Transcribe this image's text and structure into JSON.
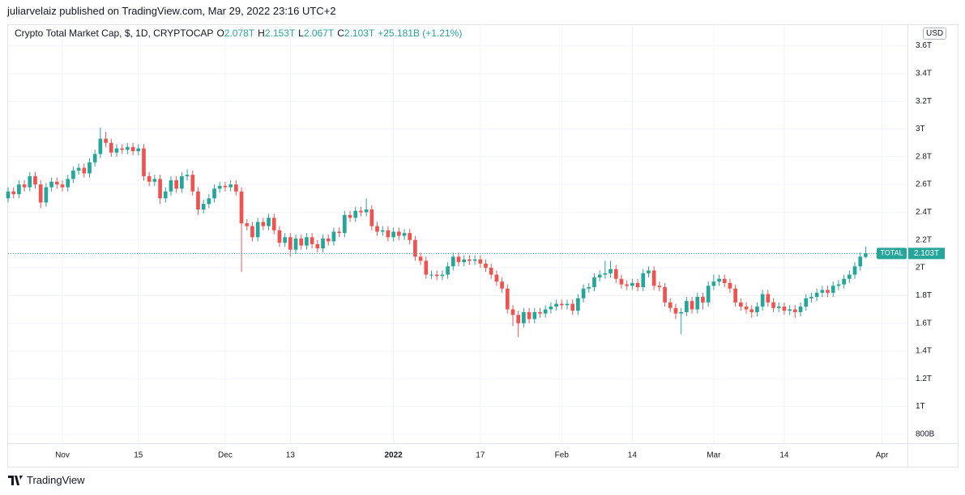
{
  "header": {
    "published": "juliarvelaiz published on TradingView.com, Mar 29, 2022 23:16 UTC+2",
    "symbol": "Crypto Total Market Cap, $, 1D, CRYPTOCAP",
    "ohlc": [
      {
        "key": "O",
        "value": "2.078T"
      },
      {
        "key": "H",
        "value": "2.153T"
      },
      {
        "key": "L",
        "value": "2.067T"
      },
      {
        "key": "C",
        "value": "2.103T"
      }
    ],
    "change": "+25.181B (+1.21%)",
    "currency": "USD"
  },
  "footer": {
    "brand": "TradingView"
  },
  "chart_data": {
    "type": "candlestick",
    "up_color": "#26a69a",
    "down_color": "#ef5350",
    "grid": true,
    "xlim": [
      0,
      165.7
    ],
    "xticks": [
      {
        "value": 10,
        "label": "Nov"
      },
      {
        "value": 24,
        "label": "15"
      },
      {
        "value": 40,
        "label": "Dec"
      },
      {
        "value": 52,
        "label": "13"
      },
      {
        "value": 71,
        "label": "2022"
      },
      {
        "value": 87,
        "label": "17"
      },
      {
        "value": 102,
        "label": "Feb"
      },
      {
        "value": 115,
        "label": "14"
      },
      {
        "value": 130,
        "label": "Mar"
      },
      {
        "value": 143,
        "label": "14"
      },
      {
        "value": 161,
        "label": "Apr"
      }
    ],
    "ylim": [
      0.735,
      3.755
    ],
    "yticks": [
      {
        "value": 0.8,
        "label": "800B"
      },
      {
        "value": 1,
        "label": "1T"
      },
      {
        "value": 1.2,
        "label": "1.2T"
      },
      {
        "value": 1.4,
        "label": "1.4T"
      },
      {
        "value": 1.6,
        "label": "1.6T"
      },
      {
        "value": 1.8,
        "label": "1.8T"
      },
      {
        "value": 2,
        "label": "2T"
      },
      {
        "value": 2.2,
        "label": "2.2T"
      },
      {
        "value": 2.4,
        "label": "2.4T"
      },
      {
        "value": 2.6,
        "label": "2.6T"
      },
      {
        "value": 2.8,
        "label": "2.8T"
      },
      {
        "value": 3,
        "label": "3T"
      },
      {
        "value": 3.2,
        "label": "3.2T"
      },
      {
        "value": 3.4,
        "label": "3.4T"
      },
      {
        "value": 3.6,
        "label": "3.6T"
      }
    ],
    "last_price": {
      "name": "TOTAL",
      "value": 2.103,
      "label": "2.103T",
      "color": "#26a69a"
    },
    "series": [
      {
        "ohlc": [
          [
            2.5,
            2.58,
            2.47,
            2.55
          ],
          [
            2.55,
            2.58,
            2.5,
            2.53
          ],
          [
            2.53,
            2.63,
            2.5,
            2.6
          ],
          [
            2.6,
            2.63,
            2.55,
            2.58
          ],
          [
            2.58,
            2.69,
            2.55,
            2.66
          ],
          [
            2.66,
            2.69,
            2.57,
            2.6
          ],
          [
            2.6,
            2.63,
            2.43,
            2.47
          ],
          [
            2.47,
            2.61,
            2.44,
            2.58
          ],
          [
            2.58,
            2.65,
            2.55,
            2.62
          ],
          [
            2.62,
            2.65,
            2.57,
            2.6
          ],
          [
            2.6,
            2.63,
            2.55,
            2.58
          ],
          [
            2.58,
            2.67,
            2.55,
            2.64
          ],
          [
            2.64,
            2.73,
            2.61,
            2.7
          ],
          [
            2.7,
            2.75,
            2.67,
            2.72
          ],
          [
            2.72,
            2.75,
            2.65,
            2.68
          ],
          [
            2.68,
            2.79,
            2.65,
            2.76
          ],
          [
            2.76,
            2.85,
            2.73,
            2.82
          ],
          [
            2.82,
            3.01,
            2.79,
            2.93
          ],
          [
            2.93,
            2.98,
            2.87,
            2.9
          ],
          [
            2.9,
            2.93,
            2.8,
            2.83
          ],
          [
            2.83,
            2.89,
            2.8,
            2.86
          ],
          [
            2.86,
            2.89,
            2.82,
            2.85
          ],
          [
            2.85,
            2.9,
            2.82,
            2.87
          ],
          [
            2.87,
            2.9,
            2.81,
            2.84
          ],
          [
            2.84,
            2.89,
            2.81,
            2.86
          ],
          [
            2.86,
            2.89,
            2.63,
            2.66
          ],
          [
            2.66,
            2.69,
            2.59,
            2.62
          ],
          [
            2.62,
            2.67,
            2.59,
            2.64
          ],
          [
            2.64,
            2.67,
            2.46,
            2.5
          ],
          [
            2.5,
            2.58,
            2.47,
            2.55
          ],
          [
            2.55,
            2.66,
            2.52,
            2.63
          ],
          [
            2.63,
            2.66,
            2.54,
            2.57
          ],
          [
            2.57,
            2.69,
            2.54,
            2.66
          ],
          [
            2.66,
            2.71,
            2.63,
            2.67
          ],
          [
            2.67,
            2.7,
            2.52,
            2.55
          ],
          [
            2.55,
            2.58,
            2.38,
            2.42
          ],
          [
            2.42,
            2.49,
            2.39,
            2.46
          ],
          [
            2.46,
            2.53,
            2.43,
            2.5
          ],
          [
            2.5,
            2.6,
            2.47,
            2.57
          ],
          [
            2.57,
            2.62,
            2.54,
            2.59
          ],
          [
            2.59,
            2.62,
            2.55,
            2.58
          ],
          [
            2.58,
            2.63,
            2.55,
            2.6
          ],
          [
            2.6,
            2.63,
            2.52,
            2.55
          ],
          [
            2.55,
            2.58,
            1.97,
            2.32
          ],
          [
            2.32,
            2.35,
            2.27,
            2.3
          ],
          [
            2.3,
            2.33,
            2.19,
            2.22
          ],
          [
            2.22,
            2.36,
            2.19,
            2.33
          ],
          [
            2.33,
            2.36,
            2.27,
            2.3
          ],
          [
            2.3,
            2.39,
            2.27,
            2.36
          ],
          [
            2.36,
            2.39,
            2.24,
            2.27
          ],
          [
            2.27,
            2.3,
            2.15,
            2.18
          ],
          [
            2.18,
            2.25,
            2.15,
            2.22
          ],
          [
            2.22,
            2.25,
            2.08,
            2.13
          ],
          [
            2.13,
            2.24,
            2.1,
            2.21
          ],
          [
            2.21,
            2.24,
            2.13,
            2.16
          ],
          [
            2.16,
            2.25,
            2.13,
            2.22
          ],
          [
            2.22,
            2.25,
            2.14,
            2.17
          ],
          [
            2.17,
            2.2,
            2.11,
            2.14
          ],
          [
            2.14,
            2.24,
            2.11,
            2.21
          ],
          [
            2.21,
            2.24,
            2.16,
            2.19
          ],
          [
            2.19,
            2.29,
            2.16,
            2.26
          ],
          [
            2.26,
            2.29,
            2.22,
            2.25
          ],
          [
            2.25,
            2.41,
            2.22,
            2.38
          ],
          [
            2.38,
            2.41,
            2.33,
            2.36
          ],
          [
            2.36,
            2.44,
            2.33,
            2.41
          ],
          [
            2.41,
            2.44,
            2.37,
            2.4
          ],
          [
            2.4,
            2.5,
            2.37,
            2.42
          ],
          [
            2.42,
            2.45,
            2.27,
            2.3
          ],
          [
            2.3,
            2.33,
            2.23,
            2.26
          ],
          [
            2.26,
            2.3,
            2.23,
            2.27
          ],
          [
            2.27,
            2.3,
            2.19,
            2.22
          ],
          [
            2.22,
            2.29,
            2.19,
            2.26
          ],
          [
            2.26,
            2.29,
            2.2,
            2.23
          ],
          [
            2.23,
            2.28,
            2.2,
            2.25
          ],
          [
            2.25,
            2.28,
            2.17,
            2.2
          ],
          [
            2.2,
            2.23,
            2.05,
            2.08
          ],
          [
            2.08,
            2.11,
            2.02,
            2.05
          ],
          [
            2.05,
            2.08,
            1.92,
            1.95
          ],
          [
            1.95,
            1.98,
            1.92,
            1.95
          ],
          [
            1.95,
            1.98,
            1.91,
            1.94
          ],
          [
            1.94,
            1.98,
            1.91,
            1.95
          ],
          [
            1.95,
            2.04,
            1.92,
            2.01
          ],
          [
            2.01,
            2.11,
            1.98,
            2.08
          ],
          [
            2.08,
            2.11,
            2.01,
            2.04
          ],
          [
            2.04,
            2.09,
            2.01,
            2.06
          ],
          [
            2.06,
            2.09,
            2.02,
            2.05
          ],
          [
            2.05,
            2.09,
            2.02,
            2.06
          ],
          [
            2.06,
            2.09,
            2.0,
            2.03
          ],
          [
            2.03,
            2.06,
            1.97,
            2.0
          ],
          [
            2.0,
            2.03,
            1.92,
            1.95
          ],
          [
            1.95,
            1.98,
            1.87,
            1.9
          ],
          [
            1.9,
            1.93,
            1.82,
            1.85
          ],
          [
            1.85,
            1.88,
            1.67,
            1.7
          ],
          [
            1.7,
            1.73,
            1.58,
            1.66
          ],
          [
            1.66,
            1.69,
            1.5,
            1.6
          ],
          [
            1.6,
            1.71,
            1.57,
            1.68
          ],
          [
            1.68,
            1.71,
            1.6,
            1.63
          ],
          [
            1.63,
            1.71,
            1.6,
            1.68
          ],
          [
            1.68,
            1.71,
            1.64,
            1.67
          ],
          [
            1.67,
            1.73,
            1.64,
            1.7
          ],
          [
            1.7,
            1.75,
            1.67,
            1.72
          ],
          [
            1.72,
            1.77,
            1.69,
            1.74
          ],
          [
            1.74,
            1.77,
            1.7,
            1.73
          ],
          [
            1.73,
            1.77,
            1.7,
            1.74
          ],
          [
            1.74,
            1.77,
            1.66,
            1.69
          ],
          [
            1.69,
            1.81,
            1.66,
            1.78
          ],
          [
            1.78,
            1.88,
            1.75,
            1.85
          ],
          [
            1.85,
            1.89,
            1.82,
            1.86
          ],
          [
            1.86,
            1.96,
            1.83,
            1.93
          ],
          [
            1.93,
            1.98,
            1.9,
            1.95
          ],
          [
            1.95,
            2.05,
            1.92,
            1.96
          ],
          [
            1.96,
            2.05,
            1.93,
            1.99
          ],
          [
            1.99,
            2.02,
            1.89,
            1.92
          ],
          [
            1.92,
            1.95,
            1.85,
            1.88
          ],
          [
            1.88,
            1.91,
            1.84,
            1.87
          ],
          [
            1.87,
            1.92,
            1.84,
            1.89
          ],
          [
            1.89,
            1.92,
            1.83,
            1.86
          ],
          [
            1.86,
            1.99,
            1.83,
            1.96
          ],
          [
            1.96,
            2.01,
            1.93,
            1.98
          ],
          [
            1.98,
            2.01,
            1.84,
            1.87
          ],
          [
            1.87,
            1.9,
            1.83,
            1.86
          ],
          [
            1.86,
            1.89,
            1.72,
            1.75
          ],
          [
            1.75,
            1.78,
            1.68,
            1.71
          ],
          [
            1.71,
            1.74,
            1.63,
            1.67
          ],
          [
            1.67,
            1.71,
            1.52,
            1.68
          ],
          [
            1.68,
            1.79,
            1.65,
            1.76
          ],
          [
            1.76,
            1.79,
            1.67,
            1.7
          ],
          [
            1.7,
            1.82,
            1.67,
            1.79
          ],
          [
            1.79,
            1.82,
            1.7,
            1.75
          ],
          [
            1.75,
            1.9,
            1.72,
            1.87
          ],
          [
            1.87,
            1.95,
            1.84,
            1.9
          ],
          [
            1.9,
            1.95,
            1.87,
            1.92
          ],
          [
            1.92,
            1.95,
            1.86,
            1.89
          ],
          [
            1.89,
            1.92,
            1.82,
            1.85
          ],
          [
            1.85,
            1.88,
            1.72,
            1.75
          ],
          [
            1.75,
            1.78,
            1.69,
            1.72
          ],
          [
            1.72,
            1.75,
            1.67,
            1.7
          ],
          [
            1.7,
            1.73,
            1.64,
            1.68
          ],
          [
            1.68,
            1.75,
            1.65,
            1.72
          ],
          [
            1.72,
            1.84,
            1.69,
            1.81
          ],
          [
            1.81,
            1.84,
            1.72,
            1.75
          ],
          [
            1.75,
            1.78,
            1.68,
            1.71
          ],
          [
            1.71,
            1.75,
            1.68,
            1.72
          ],
          [
            1.72,
            1.75,
            1.66,
            1.69
          ],
          [
            1.69,
            1.73,
            1.66,
            1.7
          ],
          [
            1.7,
            1.73,
            1.64,
            1.68
          ],
          [
            1.68,
            1.75,
            1.65,
            1.72
          ],
          [
            1.72,
            1.81,
            1.69,
            1.78
          ],
          [
            1.78,
            1.82,
            1.75,
            1.79
          ],
          [
            1.79,
            1.85,
            1.76,
            1.82
          ],
          [
            1.82,
            1.87,
            1.79,
            1.84
          ],
          [
            1.84,
            1.87,
            1.79,
            1.82
          ],
          [
            1.82,
            1.9,
            1.79,
            1.87
          ],
          [
            1.87,
            1.91,
            1.84,
            1.88
          ],
          [
            1.88,
            1.95,
            1.85,
            1.92
          ],
          [
            1.92,
            1.98,
            1.89,
            1.95
          ],
          [
            1.95,
            2.04,
            1.92,
            2.01
          ],
          [
            2.01,
            2.11,
            1.98,
            2.08
          ],
          [
            2.078,
            2.153,
            2.067,
            2.103
          ]
        ]
      }
    ]
  }
}
